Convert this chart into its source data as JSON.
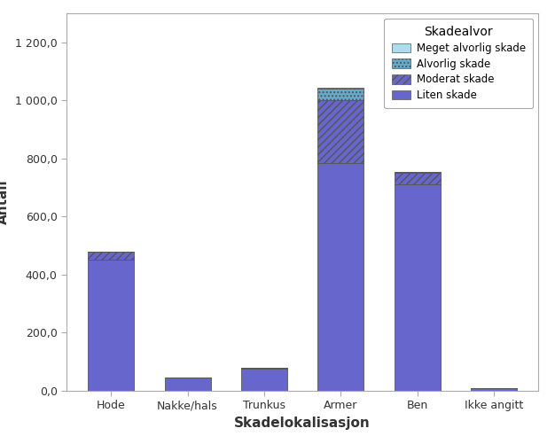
{
  "categories": [
    "Hode",
    "Nakke/hals",
    "Trunkus",
    "Armer",
    "Ben",
    "Ikke angitt"
  ],
  "segments": {
    "Liten skade": [
      450,
      45,
      75,
      785,
      710,
      10
    ],
    "Moderat skade": [
      30,
      0,
      5,
      215,
      40,
      0
    ],
    "Alvorlig skade": [
      0,
      0,
      0,
      40,
      5,
      0
    ],
    "Meget alvorlig skade": [
      0,
      0,
      0,
      5,
      0,
      0
    ]
  },
  "colors": {
    "Liten skade": "#6666CC",
    "Moderat skade": "#6666CC",
    "Alvorlig skade": "#66AACC",
    "Meget alvorlig skade": "#AADDEE"
  },
  "hatches": {
    "Liten skade": "",
    "Moderat skade": "////",
    "Alvorlig skade": "....",
    "Meget alvorlig skade": ""
  },
  "legend_order": [
    "Meget alvorlig skade",
    "Alvorlig skade",
    "Moderat skade",
    "Liten skade"
  ],
  "legend_title": "Skadealvor",
  "xlabel": "Skadelokalisasjon",
  "ylabel": "Antall",
  "ylim": [
    0,
    1300
  ],
  "yticks": [
    0,
    200,
    400,
    600,
    800,
    1000,
    1200
  ],
  "background_color": "#FFFFFF",
  "plot_bg_color": "#FFFFFF",
  "bar_edge_color": "#555555",
  "bar_width": 0.6
}
